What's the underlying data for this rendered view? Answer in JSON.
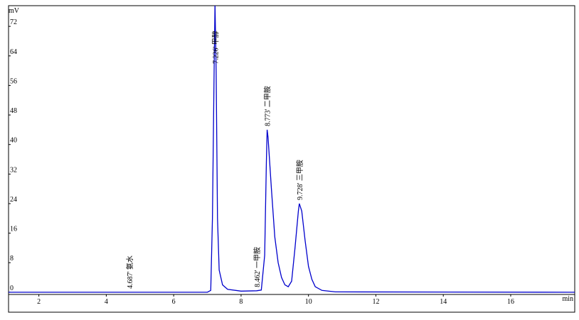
{
  "chart_data": {
    "type": "line",
    "y_label": "mV",
    "x_label": "min",
    "xlim": [
      1.1,
      17.9
    ],
    "ylim": [
      -0.6,
      77.6
    ],
    "xticks": [
      2,
      4,
      6,
      8,
      10,
      12,
      14,
      16
    ],
    "yticks": [
      0,
      8,
      16,
      24,
      32,
      40,
      48,
      56,
      64,
      72
    ],
    "x": [
      1.1,
      7.0,
      7.1,
      7.15,
      7.2,
      7.226,
      7.26,
      7.3,
      7.35,
      7.45,
      7.6,
      8.0,
      8.462,
      8.6,
      8.7,
      8.75,
      8.773,
      8.8,
      8.9,
      9.0,
      9.1,
      9.2,
      9.3,
      9.4,
      9.5,
      9.6,
      9.7,
      9.728,
      9.8,
      9.9,
      10.0,
      10.1,
      10.2,
      10.4,
      10.8,
      17.9
    ],
    "series": [
      {
        "color": "#0000cc",
        "values": [
          0,
          0,
          0.5,
          20,
          60,
          78,
          60,
          20,
          6,
          2,
          0.8,
          0.3,
          0.4,
          0.6,
          10,
          35,
          44,
          42,
          28,
          15,
          8,
          4,
          2,
          1.5,
          3,
          12,
          22,
          24,
          22,
          14,
          7,
          3.5,
          1.5,
          0.5,
          0.1,
          0
        ]
      }
    ],
    "annotations": [
      {
        "text": "4.687' 氨水",
        "x": 4.687
      },
      {
        "text": "7.226' 甲醇",
        "x": 7.226
      },
      {
        "text": "8.462' 一甲胺",
        "x": 8.462
      },
      {
        "text": "8.773' 二甲胺",
        "x": 8.773
      },
      {
        "text": "9.728' 三甲胺",
        "x": 9.728
      }
    ]
  }
}
